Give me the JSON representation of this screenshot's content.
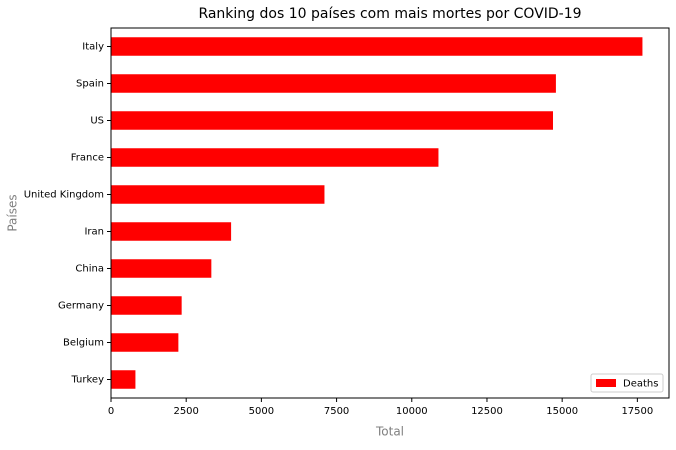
{
  "chart_data": {
    "type": "barh",
    "title": "Ranking dos 10 países com mais mortes por COVID-19",
    "xlabel": "Total",
    "ylabel": "Países",
    "categories": [
      "Italy",
      "Spain",
      "US",
      "France",
      "United Kingdom",
      "Iran",
      "China",
      "Germany",
      "Belgium",
      "Turkey"
    ],
    "series": [
      {
        "name": "Deaths",
        "color": "#ff0000",
        "values": [
          17669,
          14792,
          14695,
          10887,
          7097,
          3993,
          3336,
          2349,
          2240,
          812
        ]
      }
    ],
    "xlim": [
      0,
      18552
    ],
    "xticks": [
      0,
      2500,
      5000,
      7500,
      10000,
      12500,
      15000,
      17500
    ],
    "legend": "lower right"
  }
}
